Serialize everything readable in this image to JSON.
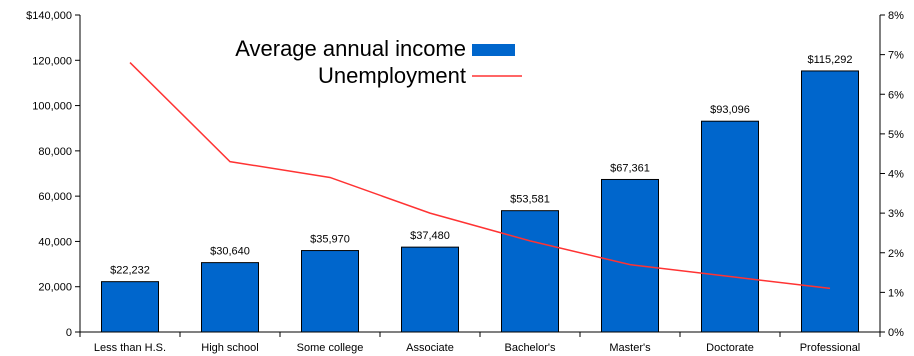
{
  "chart_data": {
    "type": "bar",
    "categories": [
      "Less than H.S.",
      "High school",
      "Some college",
      "Associate",
      "Bachelor's",
      "Master's",
      "Doctorate",
      "Professional"
    ],
    "series": [
      {
        "name": "Average annual income",
        "type": "bar",
        "axis": "left",
        "color": "#0066cc",
        "values": [
          22232,
          30640,
          35970,
          37480,
          53581,
          67361,
          93096,
          115292
        ],
        "labels": [
          "$22,232",
          "$30,640",
          "$35,970",
          "$37,480",
          "$53,581",
          "$67,361",
          "$93,096",
          "$115,292"
        ]
      },
      {
        "name": "Unemployment",
        "type": "line",
        "axis": "right",
        "color": "#ff3333",
        "values": [
          6.8,
          4.3,
          3.9,
          3.0,
          2.3,
          1.7,
          1.4,
          1.1
        ]
      }
    ],
    "y_left": {
      "lim": [
        0,
        140000
      ],
      "ticks": [
        0,
        20000,
        40000,
        60000,
        80000,
        100000,
        120000,
        140000
      ],
      "tick_labels": [
        "0",
        "20,000",
        "40,000",
        "60,000",
        "80,000",
        "100,000",
        "120,000",
        "$140,000"
      ]
    },
    "y_right": {
      "lim": [
        0,
        8
      ],
      "ticks": [
        0,
        1,
        2,
        3,
        4,
        5,
        6,
        7,
        8
      ],
      "tick_labels": [
        "0%",
        "1%",
        "2%",
        "3%",
        "4%",
        "5%",
        "6%",
        "7%",
        "8%"
      ]
    },
    "grid": false,
    "legend_position": "top-center"
  }
}
